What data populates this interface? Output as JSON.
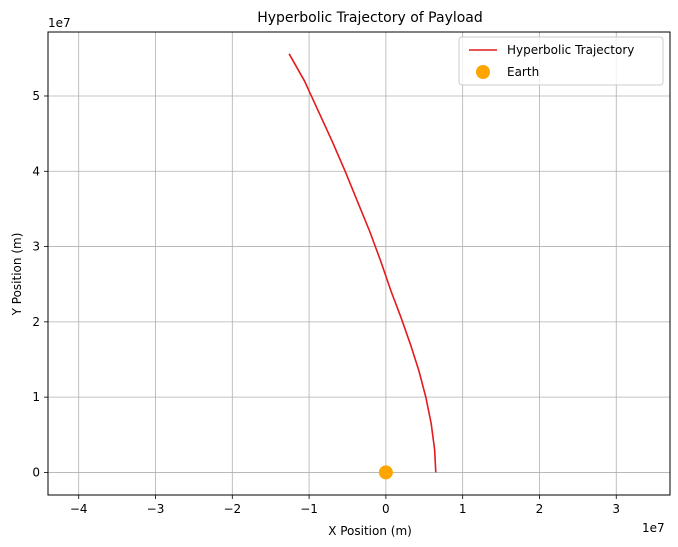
{
  "chart_data": {
    "type": "line",
    "title": "Hyperbolic Trajectory of Payload",
    "xlabel": "X Position (m)",
    "ylabel": "Y Position (m)",
    "x_offset_label": "1e7",
    "y_offset_label": "1e7",
    "xlim": [
      -44000000.0,
      37000000.0
    ],
    "ylim": [
      -3000000.0,
      58500000.0
    ],
    "x_ticks": [
      -40000000.0,
      -30000000.0,
      -20000000.0,
      -10000000.0,
      0,
      10000000.0,
      20000000.0,
      30000000.0
    ],
    "x_tick_labels": [
      "−4",
      "−3",
      "−2",
      "−1",
      "0",
      "1",
      "2",
      "3"
    ],
    "y_ticks": [
      0,
      10000000.0,
      20000000.0,
      30000000.0,
      40000000.0,
      50000000.0
    ],
    "y_tick_labels": [
      "0",
      "1",
      "2",
      "3",
      "4",
      "5"
    ],
    "grid": true,
    "legend_position": "top-right",
    "series": [
      {
        "name": "Hyperbolic Trajectory",
        "kind": "line",
        "color": "#e41a1c",
        "x": [
          6500000.0,
          6350000.0,
          5900000.0,
          5200000.0,
          4300000.0,
          3200000.0,
          2000000.0,
          700000.0,
          -650000.0,
          -2100000.0,
          -3700000.0,
          -5300000.0,
          -7000000.0,
          -8800000.0,
          -10600000.0,
          -12600000.0
        ],
        "y": [
          0,
          3000000.0,
          6500000.0,
          10000000.0,
          13500000.0,
          17000000.0,
          20500000.0,
          24000000.0,
          28000000.0,
          32000000.0,
          36000000.0,
          40000000.0,
          44000000.0,
          48000000.0,
          52000000.0,
          55600000.0
        ]
      },
      {
        "name": "Earth",
        "kind": "scatter",
        "color": "#ffa500",
        "x": [
          0
        ],
        "y": [
          0
        ]
      }
    ]
  }
}
